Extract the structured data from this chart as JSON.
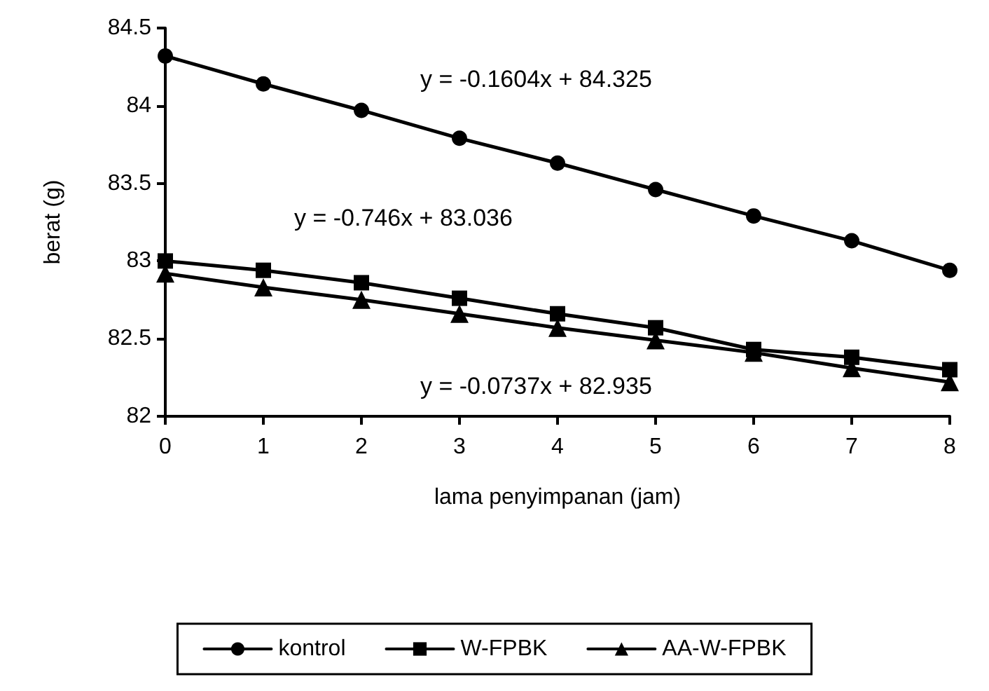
{
  "chart_data": {
    "type": "line",
    "xlabel": "lama penyimpanan (jam)",
    "ylabel": "berat (g)",
    "x": [
      0,
      1,
      2,
      3,
      4,
      5,
      6,
      7,
      8
    ],
    "series": [
      {
        "name": "kontrol",
        "color": "#000000",
        "marker": "circle",
        "values": [
          84.32,
          84.14,
          83.97,
          83.79,
          83.63,
          83.46,
          83.29,
          83.13,
          82.94
        ]
      },
      {
        "name": "W-FPBK",
        "color": "#000000",
        "marker": "square",
        "values": [
          83.0,
          82.94,
          82.86,
          82.76,
          82.66,
          82.57,
          82.43,
          82.38,
          82.3
        ]
      },
      {
        "name": "AA-W-FPBK",
        "color": "#000000",
        "marker": "triangle",
        "values": [
          82.92,
          82.83,
          82.75,
          82.66,
          82.57,
          82.49,
          82.41,
          82.31,
          82.22
        ]
      }
    ],
    "xlim": [
      0,
      8
    ],
    "xticks": [
      0,
      1,
      2,
      3,
      4,
      5,
      6,
      7,
      8
    ],
    "ylim": [
      82,
      84.5
    ],
    "yticks": [
      82,
      82.5,
      83,
      83.5,
      84,
      84.5
    ],
    "grid": false,
    "legend": "bottom",
    "line_style": "solid",
    "annotations": [
      "y = -0.1604x + 84.325",
      "y = -0.746x + 83.036",
      "y = -0.0737x + 82.935"
    ]
  }
}
